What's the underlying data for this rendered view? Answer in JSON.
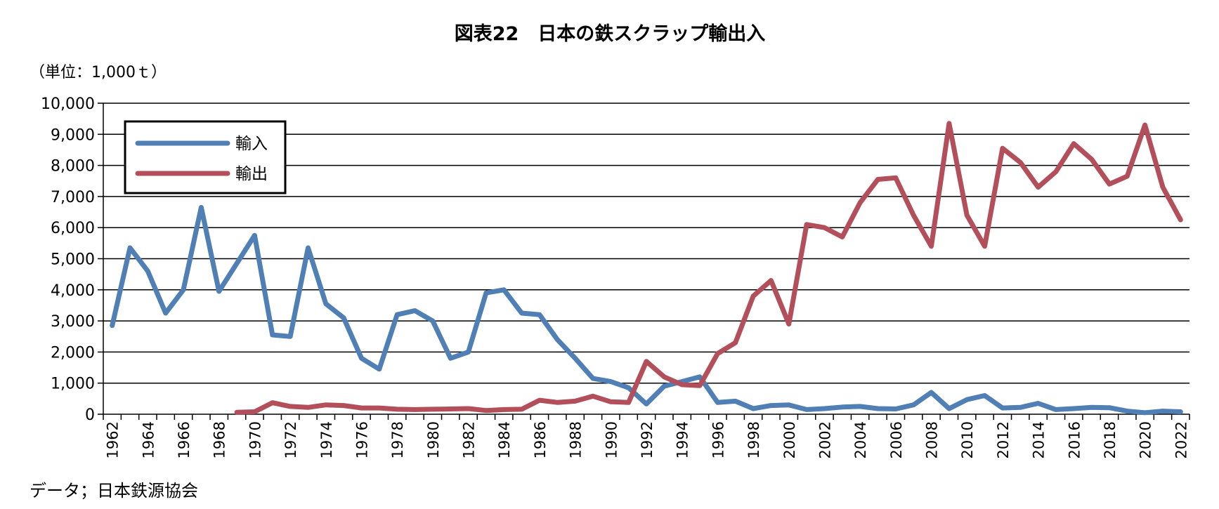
{
  "colors": {
    "import": "#4f7fb5",
    "export": "#b34f5a"
  },
  "chart_data": {
    "type": "line",
    "title": "図表22　日本の鉄スクラップ輸出入",
    "unit_label": "（単位：1,000ｔ）",
    "source": "データ；日本鉄源協会",
    "ylim": [
      0,
      10000
    ],
    "y_ticks": [
      {
        "value": 0,
        "label": "0"
      },
      {
        "value": 1000,
        "label": "1,000"
      },
      {
        "value": 2000,
        "label": "2,000"
      },
      {
        "value": 3000,
        "label": "3,000"
      },
      {
        "value": 4000,
        "label": "4,000"
      },
      {
        "value": 5000,
        "label": "5,000"
      },
      {
        "value": 6000,
        "label": "6,000"
      },
      {
        "value": 7000,
        "label": "7,000"
      },
      {
        "value": 8000,
        "label": "8,000"
      },
      {
        "value": 9000,
        "label": "9,000"
      },
      {
        "value": 10000,
        "label": "10,000"
      }
    ],
    "x": [
      1962,
      1963,
      1964,
      1965,
      1966,
      1967,
      1968,
      1969,
      1970,
      1971,
      1972,
      1973,
      1974,
      1975,
      1976,
      1977,
      1978,
      1979,
      1980,
      1981,
      1982,
      1983,
      1984,
      1985,
      1986,
      1987,
      1988,
      1989,
      1990,
      1991,
      1992,
      1993,
      1994,
      1995,
      1996,
      1997,
      1998,
      1999,
      2000,
      2001,
      2002,
      2003,
      2004,
      2005,
      2006,
      2007,
      2008,
      2009,
      2010,
      2011,
      2012,
      2013,
      2014,
      2015,
      2016,
      2017,
      2018,
      2019,
      2020,
      2021,
      2022
    ],
    "x_tick_labels": [
      "1962",
      "1964",
      "1966",
      "1968",
      "1970",
      "1972",
      "1974",
      "1976",
      "1978",
      "1980",
      "1982",
      "1984",
      "1986",
      "1988",
      "1990",
      "1992",
      "1994",
      "1996",
      "1998",
      "2000",
      "2002",
      "2004",
      "2006",
      "2008",
      "2010",
      "2012",
      "2014",
      "2016",
      "2018",
      "2020",
      "2022"
    ],
    "grid": true,
    "legend": "top-left",
    "series": [
      {
        "name": "輸入",
        "color_key": "import",
        "values": [
          2850,
          5350,
          4600,
          3250,
          4000,
          6650,
          3950,
          4850,
          5750,
          2550,
          2500,
          5350,
          3550,
          3100,
          1800,
          1450,
          3200,
          3330,
          3000,
          1800,
          2000,
          3900,
          4000,
          3250,
          3200,
          2400,
          1800,
          1150,
          1050,
          850,
          330,
          900,
          1050,
          1200,
          380,
          420,
          180,
          280,
          300,
          150,
          180,
          230,
          250,
          180,
          170,
          300,
          700,
          180,
          470,
          600,
          200,
          220,
          350,
          150,
          180,
          220,
          210,
          100,
          50,
          100,
          80
        ]
      },
      {
        "name": "輸出",
        "color_key": "export",
        "values": [
          null,
          null,
          null,
          null,
          null,
          null,
          null,
          60,
          80,
          370,
          250,
          220,
          300,
          280,
          200,
          200,
          160,
          150,
          160,
          170,
          180,
          120,
          150,
          160,
          450,
          380,
          420,
          580,
          400,
          380,
          1700,
          1200,
          950,
          920,
          1950,
          2300,
          3800,
          4300,
          2900,
          6100,
          6000,
          5700,
          6800,
          7550,
          7600,
          6400,
          5400,
          9350,
          6400,
          5400,
          8550,
          8100,
          7300,
          7800,
          8700,
          8200,
          7400,
          7650,
          9300,
          7300,
          6250
        ]
      }
    ]
  }
}
